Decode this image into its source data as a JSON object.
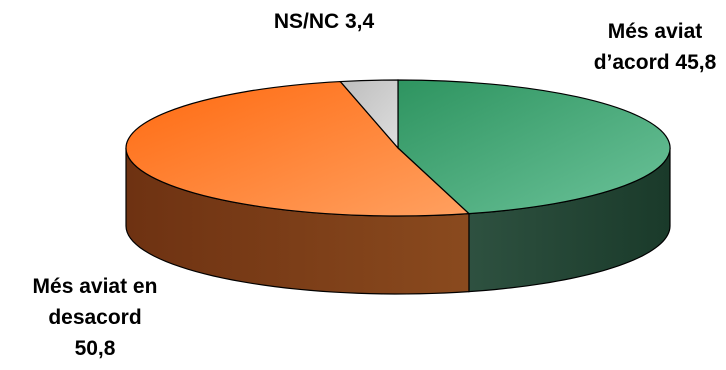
{
  "chart_data": {
    "type": "pie",
    "style": "3d",
    "title": "",
    "slices": [
      {
        "label": "Més aviat d'acord",
        "value": 45.8,
        "color": "#3a9a6a",
        "label_lines": [
          "Més aviat",
          "d’acord 45,8"
        ]
      },
      {
        "label": "Més aviat en desacord",
        "value": 50.8,
        "color": "#ff7a2a",
        "label_lines": [
          "Més aviat en",
          "desacord",
          "50,8"
        ]
      },
      {
        "label": "NS/NC",
        "value": 3.4,
        "color": "#c8c8c8",
        "label_lines": [
          "NS/NC 3,4"
        ]
      }
    ]
  }
}
